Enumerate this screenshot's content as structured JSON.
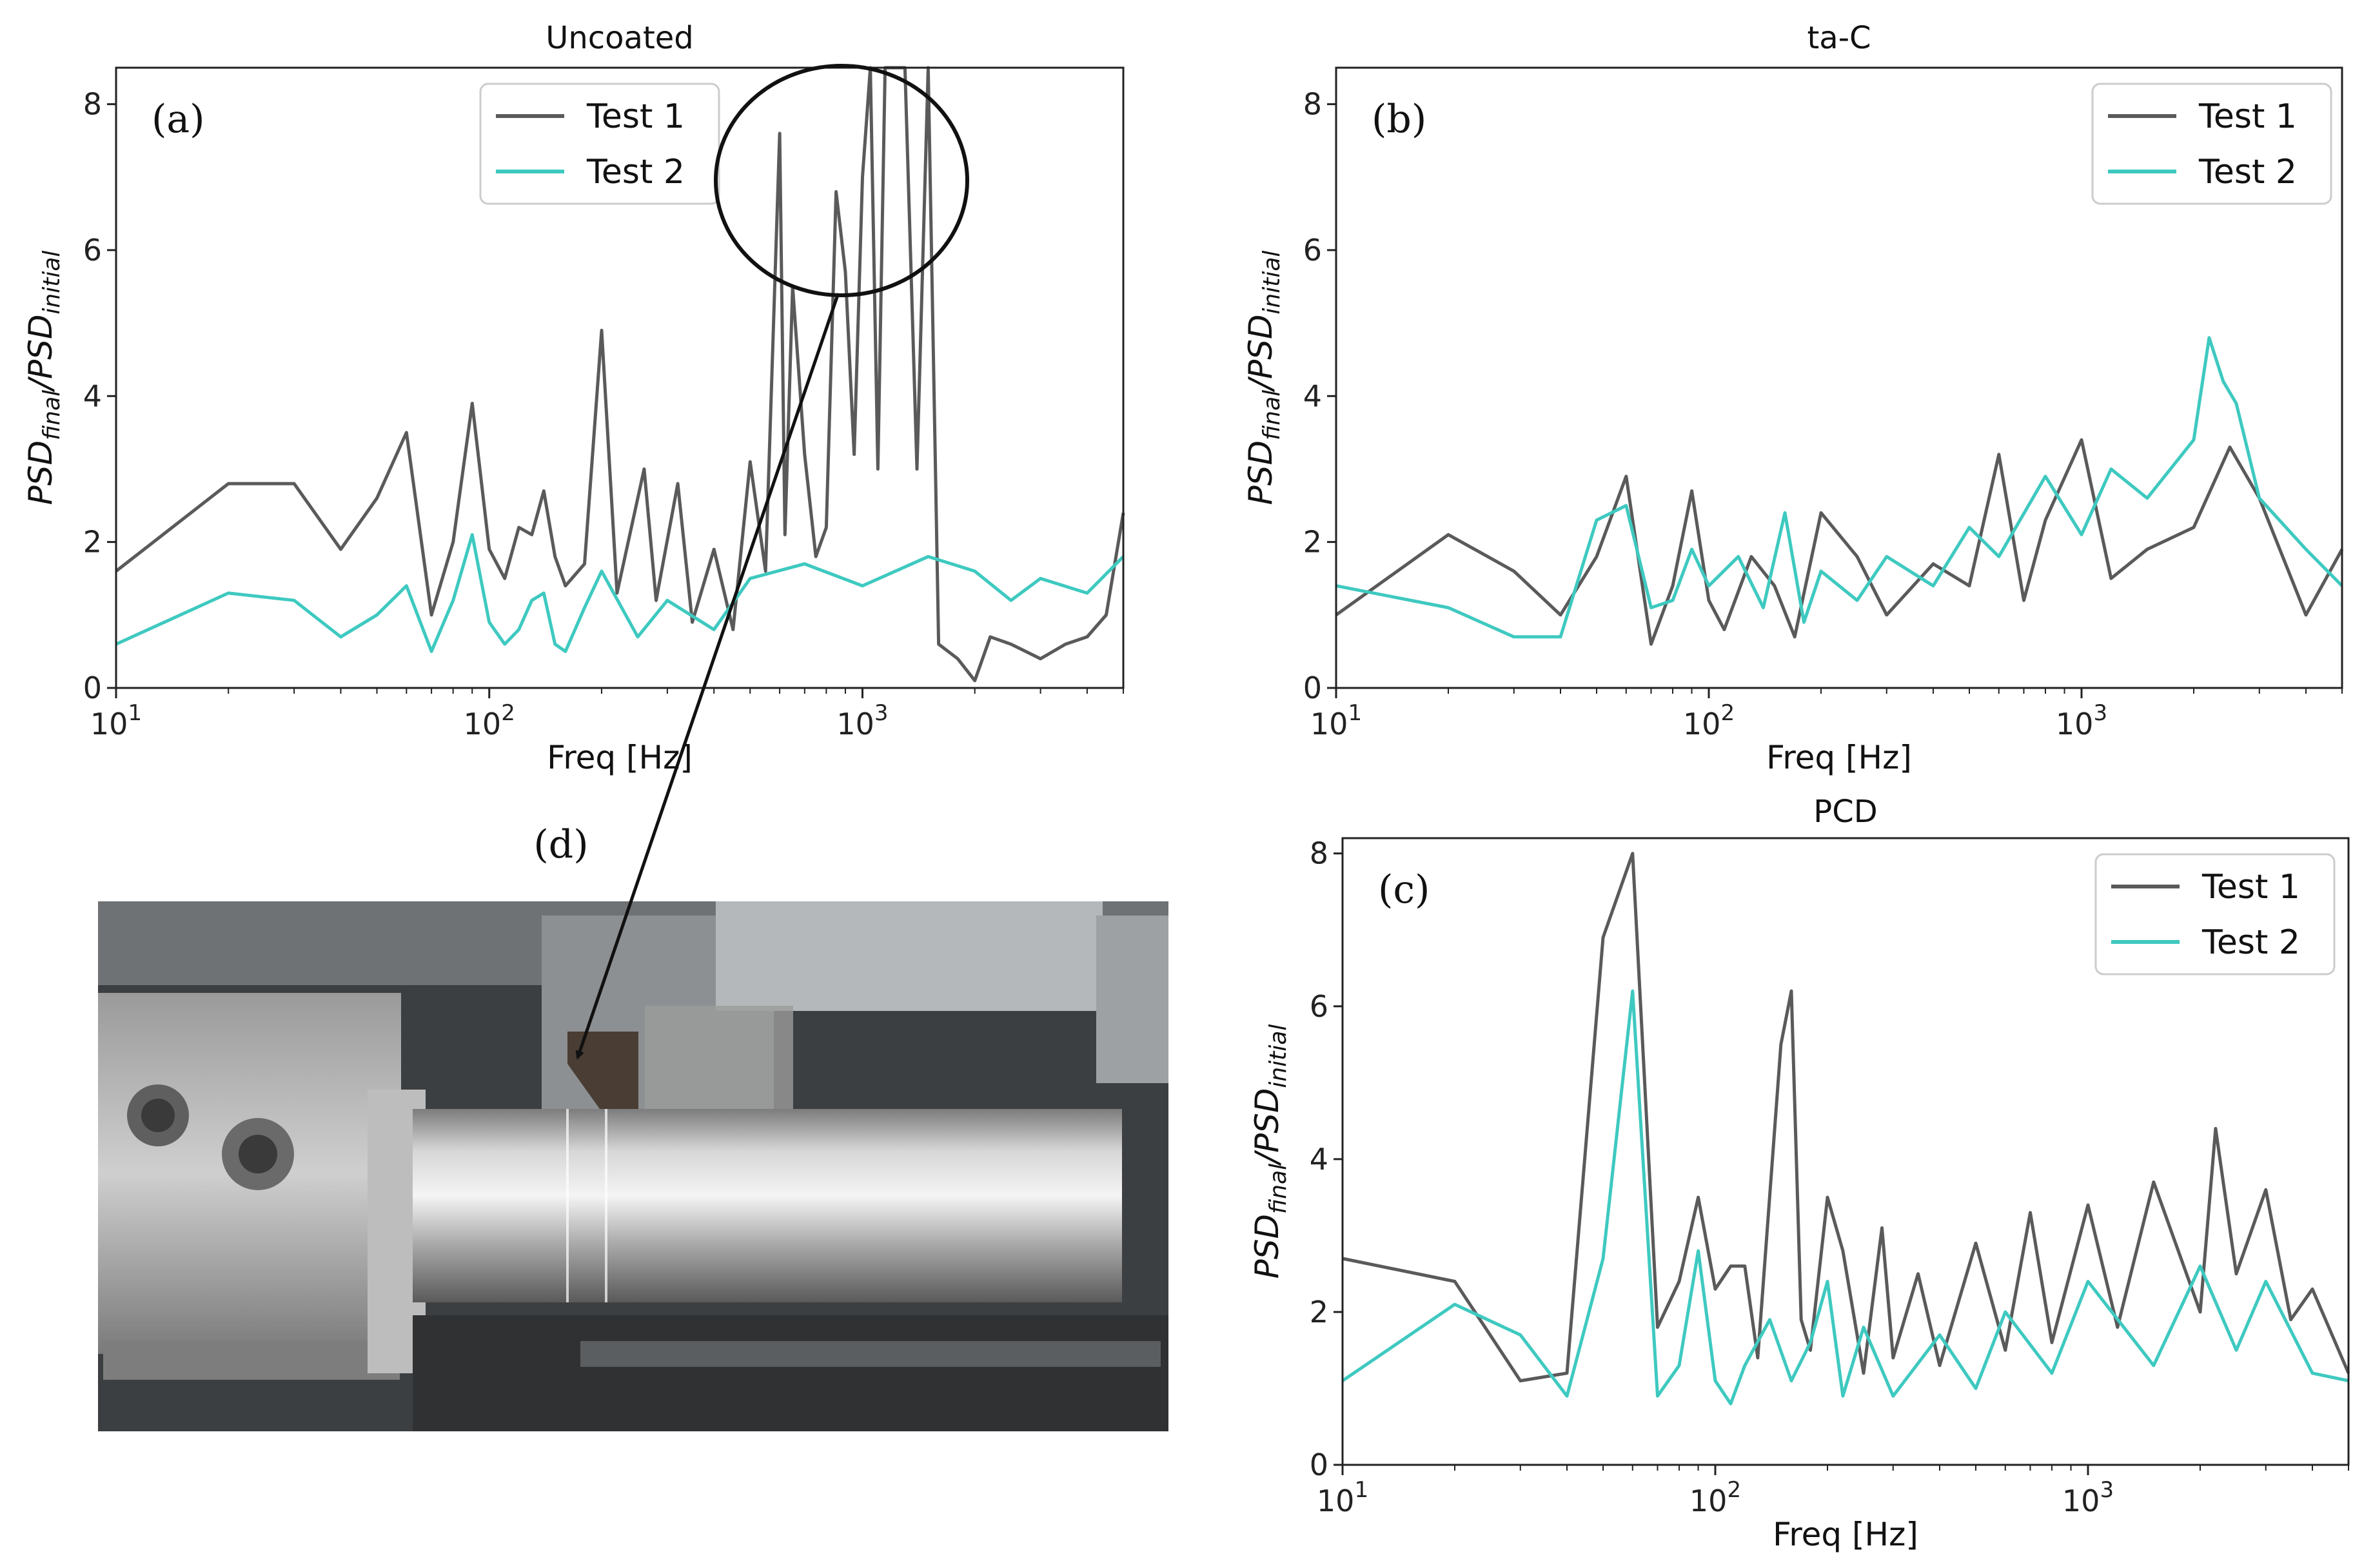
{
  "colors": {
    "test1": "#5a5a5a",
    "test2": "#3ec9c0",
    "axis": "#222222"
  },
  "photo": {
    "label": "(d)"
  },
  "chart_data": [
    {
      "type": "line",
      "panel_label": "(a)",
      "title": "Uncoated",
      "xlabel": "Freq [Hz]",
      "ylabel": "PSD_final/PSD_initial",
      "xscale": "log",
      "xlim": [
        10,
        5000
      ],
      "ylim": [
        0,
        8.5
      ],
      "yticks": [
        0,
        2,
        4,
        6,
        8
      ],
      "legend": "top-center",
      "annotation": "circle around high peaks near 1 kHz, arrow pointing to photo (d)",
      "series": [
        {
          "name": "Test 1",
          "x": [
            10,
            20,
            30,
            40,
            50,
            60,
            70,
            80,
            90,
            100,
            110,
            120,
            130,
            140,
            150,
            160,
            180,
            200,
            220,
            260,
            280,
            320,
            350,
            400,
            450,
            500,
            550,
            600,
            620,
            650,
            700,
            750,
            800,
            850,
            900,
            950,
            1000,
            1050,
            1100,
            1150,
            1200,
            1300,
            1400,
            1500,
            1600,
            1800,
            2000,
            2200,
            2500,
            3000,
            3500,
            4000,
            4500,
            5000
          ],
          "y": [
            1.6,
            2.8,
            2.8,
            1.9,
            2.6,
            3.5,
            1.0,
            2.0,
            3.9,
            1.9,
            1.5,
            2.2,
            2.1,
            2.7,
            1.8,
            1.4,
            1.7,
            4.9,
            1.3,
            3.0,
            1.2,
            2.8,
            0.9,
            1.9,
            0.8,
            3.1,
            1.6,
            7.6,
            2.1,
            5.5,
            3.2,
            1.8,
            2.2,
            6.8,
            5.7,
            3.2,
            7.0,
            8.5,
            3.0,
            8.5,
            8.5,
            8.5,
            3.0,
            8.5,
            0.6,
            0.4,
            0.1,
            0.7,
            0.6,
            0.4,
            0.6,
            0.7,
            1.0,
            2.4
          ]
        },
        {
          "name": "Test 2",
          "x": [
            10,
            20,
            30,
            40,
            50,
            60,
            70,
            80,
            90,
            100,
            110,
            120,
            130,
            140,
            150,
            160,
            180,
            200,
            250,
            300,
            400,
            500,
            700,
            1000,
            1500,
            2000,
            2500,
            3000,
            4000,
            5000
          ],
          "y": [
            0.6,
            1.3,
            1.2,
            0.7,
            1.0,
            1.4,
            0.5,
            1.2,
            2.1,
            0.9,
            0.6,
            0.8,
            1.2,
            1.3,
            0.6,
            0.5,
            1.1,
            1.6,
            0.7,
            1.2,
            0.8,
            1.5,
            1.7,
            1.4,
            1.8,
            1.6,
            1.2,
            1.5,
            1.3,
            1.8
          ]
        }
      ]
    },
    {
      "type": "line",
      "panel_label": "(b)",
      "title": "ta-C",
      "xlabel": "Freq [Hz]",
      "ylabel": "PSD_final/PSD_initial",
      "xscale": "log",
      "xlim": [
        10,
        5000
      ],
      "ylim": [
        0,
        8.5
      ],
      "yticks": [
        0,
        2,
        4,
        6,
        8
      ],
      "legend": "top-right",
      "series": [
        {
          "name": "Test 1",
          "x": [
            10,
            20,
            30,
            40,
            50,
            60,
            70,
            80,
            90,
            100,
            110,
            130,
            150,
            170,
            200,
            250,
            300,
            400,
            500,
            600,
            700,
            800,
            1000,
            1200,
            1500,
            2000,
            2500,
            3000,
            4000,
            5000
          ],
          "y": [
            1.0,
            2.1,
            1.6,
            1.0,
            1.8,
            2.9,
            0.6,
            1.4,
            2.7,
            1.2,
            0.8,
            1.8,
            1.4,
            0.7,
            2.4,
            1.8,
            1.0,
            1.7,
            1.4,
            3.2,
            1.2,
            2.3,
            3.4,
            1.5,
            1.9,
            2.2,
            3.3,
            2.6,
            1.0,
            1.9
          ]
        },
        {
          "name": "Test 2",
          "x": [
            10,
            20,
            30,
            40,
            50,
            60,
            70,
            80,
            90,
            100,
            120,
            140,
            160,
            180,
            200,
            250,
            300,
            400,
            500,
            600,
            800,
            1000,
            1200,
            1500,
            2000,
            2200,
            2400,
            2600,
            3000,
            4000,
            5000
          ],
          "y": [
            1.4,
            1.1,
            0.7,
            0.7,
            2.3,
            2.5,
            1.1,
            1.2,
            1.9,
            1.4,
            1.8,
            1.1,
            2.4,
            0.9,
            1.6,
            1.2,
            1.8,
            1.4,
            2.2,
            1.8,
            2.9,
            2.1,
            3.0,
            2.6,
            3.4,
            4.8,
            4.2,
            3.9,
            2.6,
            1.9,
            1.4
          ]
        }
      ]
    },
    {
      "type": "line",
      "panel_label": "(c)",
      "title": "PCD",
      "xlabel": "Freq [Hz]",
      "ylabel": "PSD_final/PSD_initial",
      "xscale": "log",
      "xlim": [
        10,
        5000
      ],
      "ylim": [
        0,
        8.2
      ],
      "yticks": [
        0,
        2,
        4,
        6,
        8
      ],
      "legend": "top-right",
      "series": [
        {
          "name": "Test 1",
          "x": [
            10,
            20,
            30,
            40,
            50,
            60,
            70,
            80,
            90,
            100,
            110,
            120,
            130,
            150,
            160,
            170,
            180,
            200,
            220,
            250,
            280,
            300,
            350,
            400,
            500,
            600,
            700,
            800,
            1000,
            1200,
            1500,
            2000,
            2200,
            2500,
            3000,
            3500,
            4000,
            5000
          ],
          "y": [
            2.7,
            2.4,
            1.1,
            1.2,
            6.9,
            8.0,
            1.8,
            2.4,
            3.5,
            2.3,
            2.6,
            2.6,
            1.4,
            5.5,
            6.2,
            1.9,
            1.5,
            3.5,
            2.8,
            1.2,
            3.1,
            1.4,
            2.5,
            1.3,
            2.9,
            1.5,
            3.3,
            1.6,
            3.4,
            1.8,
            3.7,
            2.0,
            4.4,
            2.5,
            3.6,
            1.9,
            2.3,
            1.2
          ]
        },
        {
          "name": "Test 2",
          "x": [
            10,
            20,
            30,
            40,
            50,
            60,
            70,
            80,
            90,
            100,
            110,
            120,
            140,
            160,
            180,
            200,
            220,
            250,
            300,
            400,
            500,
            600,
            800,
            1000,
            1500,
            2000,
            2500,
            3000,
            4000,
            5000
          ],
          "y": [
            1.1,
            2.1,
            1.7,
            0.9,
            2.7,
            6.2,
            0.9,
            1.3,
            2.8,
            1.1,
            0.8,
            1.3,
            1.9,
            1.1,
            1.6,
            2.4,
            0.9,
            1.8,
            0.9,
            1.7,
            1.0,
            2.0,
            1.2,
            2.4,
            1.3,
            2.6,
            1.5,
            2.4,
            1.2,
            1.1
          ]
        }
      ]
    }
  ]
}
